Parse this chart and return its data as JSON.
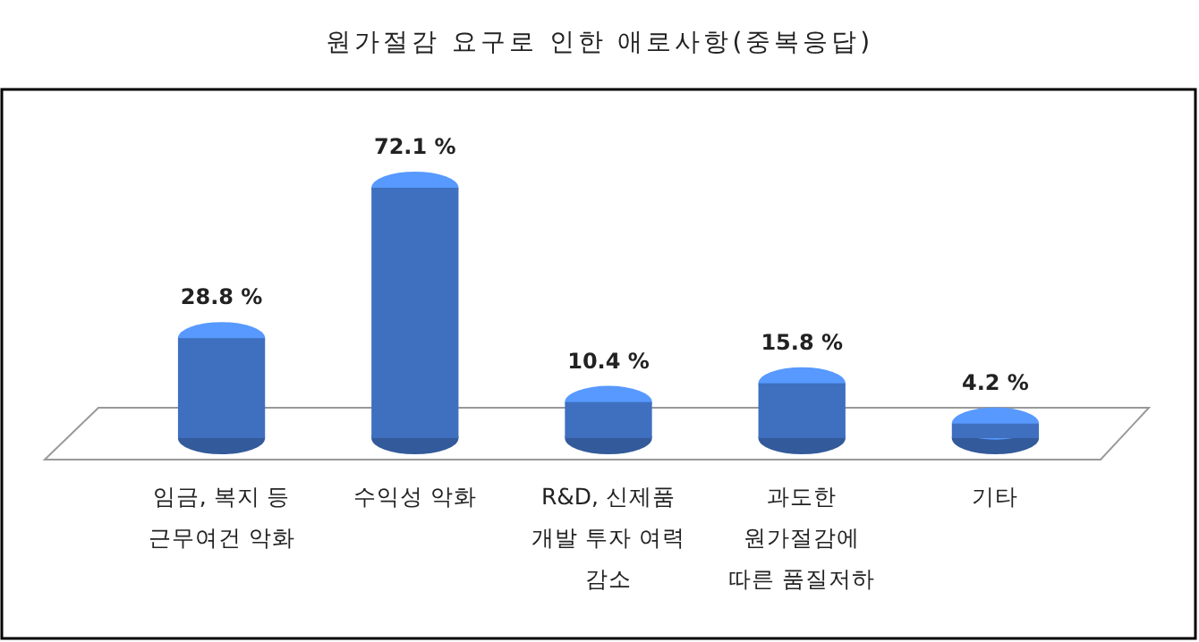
{
  "chart_data": {
    "type": "bar",
    "title": "원가절감 요구로 인한 애로사항(중복응답)",
    "categories": [
      "임금, 복지 등\n근무여건 악화",
      "수익성 악화",
      "R&D, 신제품\n개발 투자 여력\n감소",
      "과도한\n원가절감에\n따른 품질저하",
      "기타"
    ],
    "values": [
      28.8,
      72.1,
      10.4,
      15.8,
      4.2
    ],
    "value_labels": [
      "28.8 %",
      "72.1 %",
      "10.4 %",
      "15.8 %",
      "4.2 %"
    ],
    "color": "#3f6fbf"
  }
}
